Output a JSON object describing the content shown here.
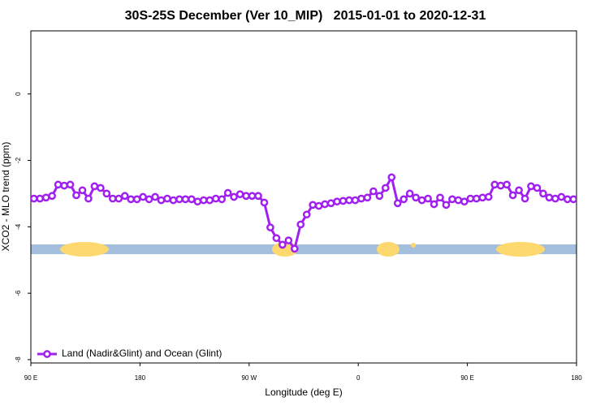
{
  "chart_data": {
    "type": "line",
    "title": "30S-25S December (Ver 10_MIP)   2015-01-01 to 2020-12-31",
    "xlabel": "Longitude (deg E)",
    "ylabel": "XCO2 - MLO trend (ppm)",
    "xlim": [
      90,
      540
    ],
    "xticks": [
      {
        "value": 90,
        "label": "90 E"
      },
      {
        "value": 180,
        "label": "180"
      },
      {
        "value": 270,
        "label": "90 W"
      },
      {
        "value": 360,
        "label": "0"
      },
      {
        "value": 450,
        "label": "90 E"
      },
      {
        "value": 540,
        "label": "180"
      }
    ],
    "ylim": [
      -8.1,
      1.9
    ],
    "yticks": [
      0,
      -2,
      -4,
      -6,
      -8
    ],
    "legend": "bottom-left",
    "x": [
      92.5,
      97.5,
      102.5,
      107.5,
      112.5,
      117.5,
      122.5,
      127.5,
      132.5,
      137.5,
      142.5,
      147.5,
      152.5,
      157.5,
      162.5,
      167.5,
      172.5,
      177.5,
      182.5,
      187.5,
      192.5,
      197.5,
      202.5,
      207.5,
      212.5,
      217.5,
      222.5,
      227.5,
      232.5,
      237.5,
      242.5,
      247.5,
      252.5,
      257.5,
      262.5,
      267.5,
      272.5,
      277.5,
      282.5,
      287.5,
      292.5,
      297.5,
      302.5,
      307.5,
      312.5,
      317.5,
      322.5,
      327.5,
      332.5,
      337.5,
      342.5,
      347.5,
      352.5,
      357.5,
      362.5,
      367.5,
      372.5,
      377.5,
      382.5,
      387.5,
      392.5,
      397.5,
      402.5,
      407.5,
      412.5,
      417.5,
      422.5,
      427.5,
      432.5,
      437.5,
      442.5,
      447.5,
      452.5,
      457.5,
      462.5,
      467.5,
      472.5,
      477.5,
      482.5,
      487.5,
      492.5,
      497.5,
      502.5,
      507.5,
      512.5,
      517.5,
      522.5,
      527.5,
      532.5,
      537.5
    ],
    "series": [
      {
        "name": "Land (Nadir&Glint) and Ocean (Glint)",
        "color": "#a020f0",
        "values": [
          -3.15,
          -3.15,
          -3.12,
          -3.07,
          -2.73,
          -2.76,
          -2.73,
          -3.05,
          -2.9,
          -3.15,
          -2.78,
          -2.83,
          -3.0,
          -3.15,
          -3.15,
          -3.07,
          -3.17,
          -3.17,
          -3.1,
          -3.17,
          -3.1,
          -3.2,
          -3.15,
          -3.2,
          -3.17,
          -3.17,
          -3.17,
          -3.24,
          -3.2,
          -3.2,
          -3.15,
          -3.17,
          -2.98,
          -3.1,
          -3.02,
          -3.07,
          -3.07,
          -3.07,
          -3.27,
          -4.02,
          -4.34,
          -4.54,
          -4.41,
          -4.66,
          -3.93,
          -3.63,
          -3.34,
          -3.37,
          -3.32,
          -3.29,
          -3.24,
          -3.22,
          -3.2,
          -3.2,
          -3.15,
          -3.12,
          -2.93,
          -3.07,
          -2.83,
          -2.51,
          -3.29,
          -3.17,
          -3.0,
          -3.12,
          -3.2,
          -3.15,
          -3.32,
          -3.12,
          -3.34,
          -3.17,
          -3.2,
          -3.24,
          -3.15,
          -3.15,
          -3.12,
          -3.1,
          -2.73,
          -2.76,
          -2.73,
          -3.05,
          -2.9,
          -3.15,
          -2.78,
          -2.83,
          -3.0,
          -3.12,
          -3.15,
          -3.1,
          -3.17,
          -3.17
        ]
      }
    ]
  }
}
